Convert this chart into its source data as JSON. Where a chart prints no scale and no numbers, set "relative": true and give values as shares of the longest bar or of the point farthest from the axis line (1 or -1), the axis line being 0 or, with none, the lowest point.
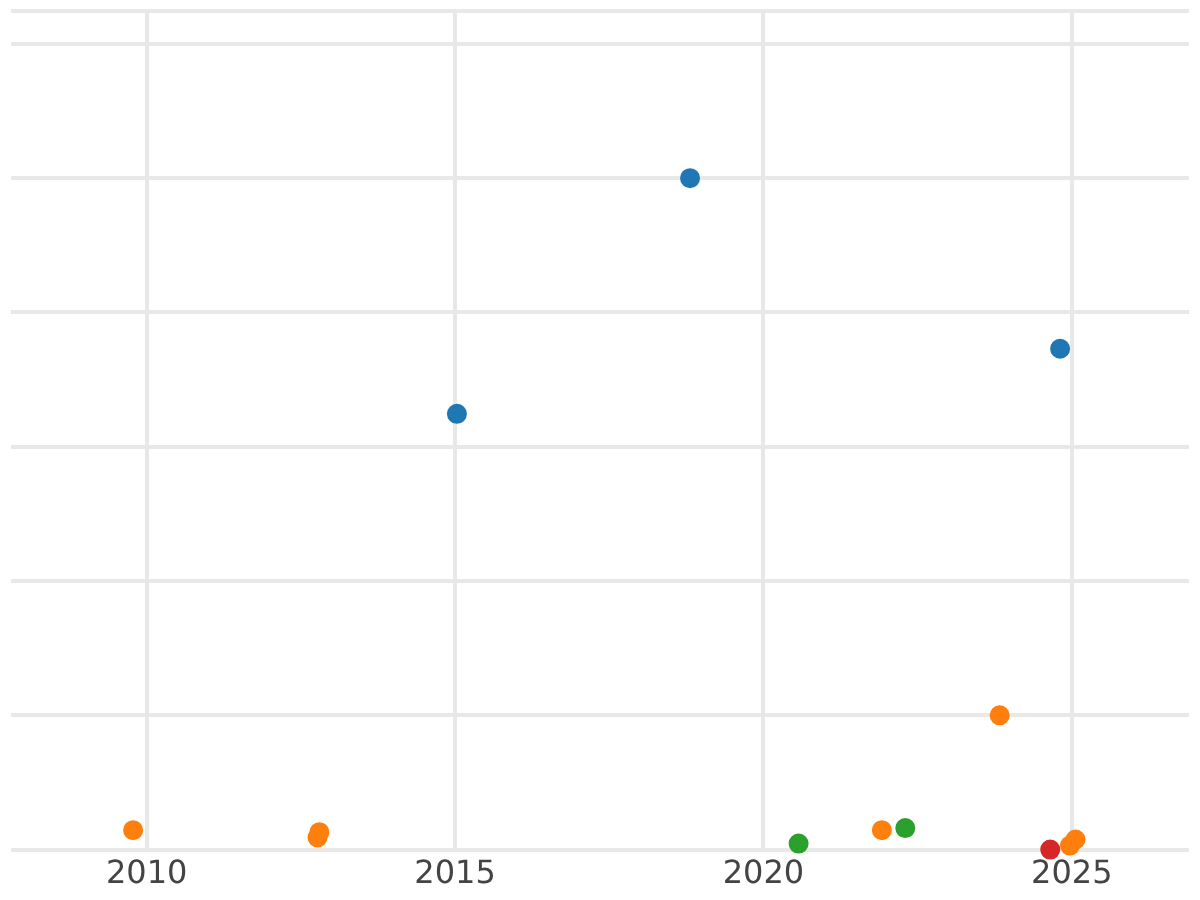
{
  "chart_data": {
    "type": "scatter",
    "relative": true,
    "xlim": [
      2007.8,
      2026.9
    ],
    "xticks": [
      2010,
      2015,
      2020,
      2025
    ],
    "grid": true,
    "legend": false,
    "marker": "circle",
    "tick_labels": "x",
    "series": [
      {
        "color": "#1f77b4",
        "x": [
          2015.03,
          2018.81,
          2024.81
        ],
        "values": [
          0.649,
          1,
          0.746
        ]
      },
      {
        "color": "#ff7f0e",
        "x": [
          2009.78,
          2012.77,
          2012.8,
          2021.92,
          2023.83,
          2024.97,
          2025.06
        ],
        "values": [
          0.029,
          0.018,
          0.026,
          0.029,
          0.2,
          0.006,
          0.015
        ]
      },
      {
        "color": "#2ca02c",
        "x": [
          2020.57,
          2022.3
        ],
        "values": [
          0.009,
          0.032
        ]
      },
      {
        "color": "#d62728",
        "x": [
          2024.65
        ],
        "values": [
          0
        ]
      }
    ]
  }
}
